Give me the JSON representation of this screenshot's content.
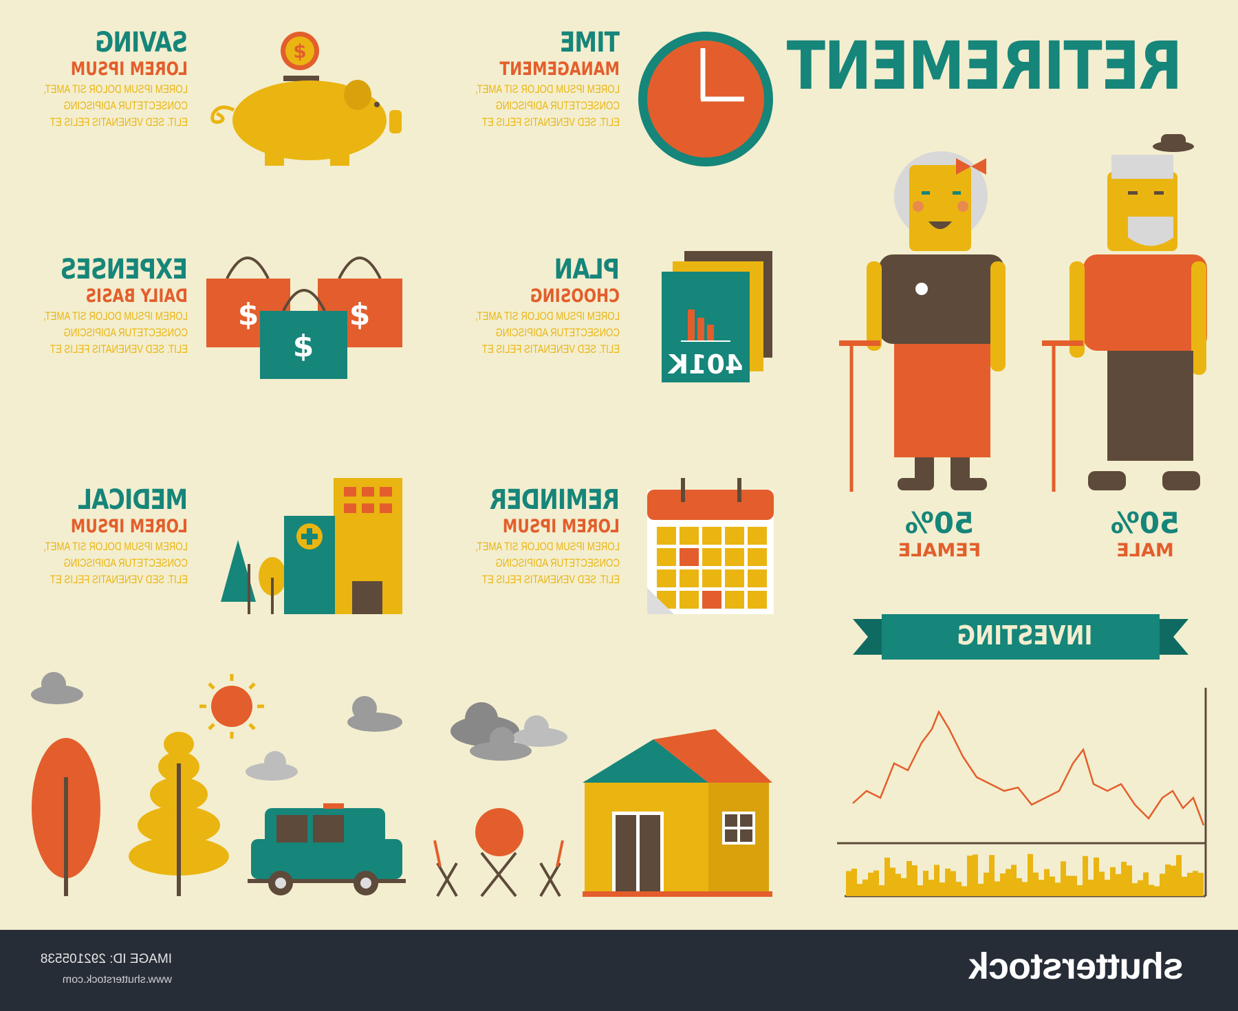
{
  "title": "RETIREMENT",
  "items": [
    {
      "heading": "SAVING",
      "sub": "LOREM IPSUM",
      "lines": [
        "LOREM IPSUM DOLOR SIT AMET,",
        "CONSECTETUR ADIPISCING",
        "ELIT. SED VENENATIS FELIS ET"
      ],
      "icon": "piggy-bank-icon"
    },
    {
      "heading": "TIME",
      "sub": "MANAGEMENT",
      "lines": [
        "LOREM IPSUM DOLOR SIT AMET,",
        "CONSECTETUR ADIPISCING",
        "ELIT. SED VENENATIS FELIS ET"
      ],
      "icon": "clock-icon"
    },
    {
      "heading": "EXPENSES",
      "sub": "DAILY BASIS",
      "lines": [
        "LOREM IPSUM DOLOR SIT AMET,",
        "CONSECTETUR ADIPISCING",
        "ELIT. SED VENENATIS FELIS ET"
      ],
      "icon": "shopping-bags-icon"
    },
    {
      "heading": "PLAN",
      "sub": "CHOOSING",
      "lines": [
        "LOREM IPSUM DOLOR SIT AMET,",
        "CONSECTETUR ADIPISCING",
        "ELIT. SED VENENATIS FELIS ET"
      ],
      "icon": "401k-document-icon"
    },
    {
      "heading": "MEDICAL",
      "sub": "LOREM IPSUM",
      "lines": [
        "LOREM IPSUM DOLOR SIT AMET,",
        "CONSECTETUR ADIPISCING",
        "ELIT. SED VENENATIS FELIS ET"
      ],
      "icon": "hospital-icon"
    },
    {
      "heading": "REMINDER",
      "sub": "LOREM IPSUM",
      "lines": [
        "LOREM IPSUM DOLOR SIT AMET,",
        "CONSECTETUR ADIPISCING",
        "ELIT. SED VENENATIS FELIS ET"
      ],
      "icon": "calendar-icon"
    }
  ],
  "plan_doc_label": "401K",
  "coin_symbol": "$",
  "bag_symbol": "$",
  "female": {
    "value": "50%",
    "label": "FEMALE"
  },
  "male": {
    "value": "50%",
    "label": "MALE"
  },
  "banner": "INVESTING",
  "footer": {
    "image_id": "IMAGE ID: 292105538",
    "url": "www.shutterstock.com",
    "logo": "shutterstock"
  },
  "colors": {
    "background": "#f3eecf",
    "teal": "#16857a",
    "orange": "#e35e2c",
    "yellow": "#eab511",
    "brown": "#5d4a3a",
    "footer": "#272d37"
  }
}
